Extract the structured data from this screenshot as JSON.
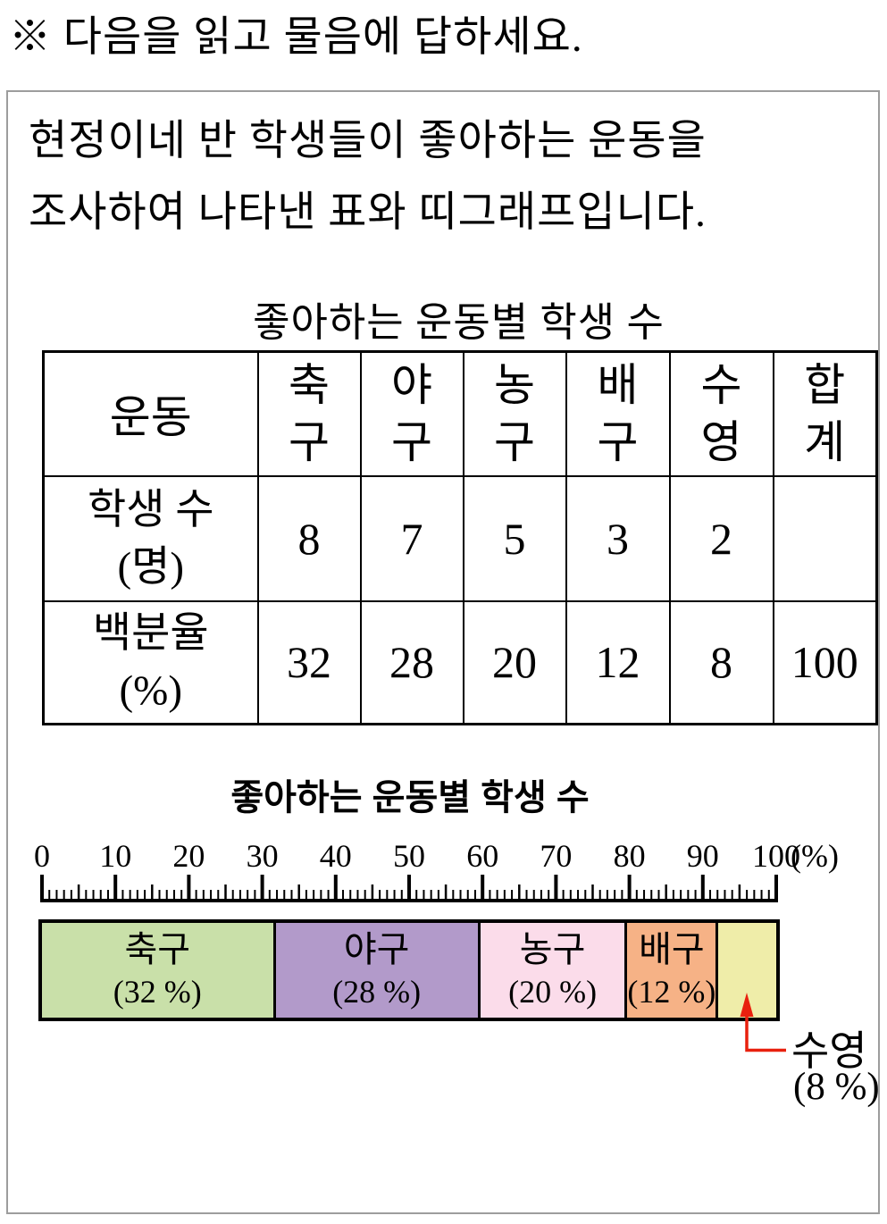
{
  "page": {
    "heading": "※ 다음을 읽고 물음에 답하세요.",
    "intro_line1": "현정이네 반 학생들이 좋아하는 운동을",
    "intro_line2": "조사하여 나타낸 표와 띠그래프입니다."
  },
  "table": {
    "title": "좋아하는 운동별 학생 수",
    "corner_header": "운동",
    "column_headers": [
      "축구",
      "야구",
      "농구",
      "배구",
      "수영",
      "합계"
    ],
    "rows": [
      {
        "label_line1": "학생 수",
        "label_line2": "(명)",
        "values": [
          "8",
          "7",
          "5",
          "3",
          "2",
          ""
        ]
      },
      {
        "label_line1": "백분율",
        "label_line2": "(%)",
        "values": [
          "32",
          "28",
          "20",
          "12",
          "8",
          "100"
        ]
      }
    ]
  },
  "chart_data": {
    "type": "bar",
    "variant": "strip-graph",
    "title": "좋아하는 운동별 학생 수",
    "axis": {
      "min": 0,
      "max": 100,
      "major_tick_step": 10,
      "mid_tick_step": 5,
      "minor_tick_step": 1,
      "tick_labels": [
        "0",
        "10",
        "20",
        "30",
        "40",
        "50",
        "60",
        "70",
        "80",
        "90",
        "100"
      ],
      "unit_suffix": "(%)"
    },
    "categories": [
      "축구",
      "야구",
      "농구",
      "배구",
      "수영"
    ],
    "values": [
      32,
      28,
      20,
      12,
      8
    ],
    "segments": [
      {
        "label": "축구",
        "pct_label": "(32 %)",
        "value": 32,
        "color": "#c9e0a9",
        "label_inside": true
      },
      {
        "label": "야구",
        "pct_label": "(28 %)",
        "value": 28,
        "color": "#b29aca",
        "label_inside": true
      },
      {
        "label": "농구",
        "pct_label": "(20 %)",
        "value": 20,
        "color": "#fbdcea",
        "label_inside": true
      },
      {
        "label": "배구",
        "pct_label": "(12 %)",
        "value": 12,
        "color": "#f6b286",
        "label_inside": true
      },
      {
        "label": "수영",
        "pct_label": "(8 %)",
        "value": 8,
        "color": "#efeda9",
        "label_inside": false
      }
    ],
    "callout": {
      "label": "수영",
      "pct_label": "(8 %)",
      "arrow_color": "#e8200e"
    }
  },
  "colors": {
    "box_border": "#9d9d9d",
    "table_border": "#000000",
    "text": "#000000",
    "background": "#ffffff"
  }
}
